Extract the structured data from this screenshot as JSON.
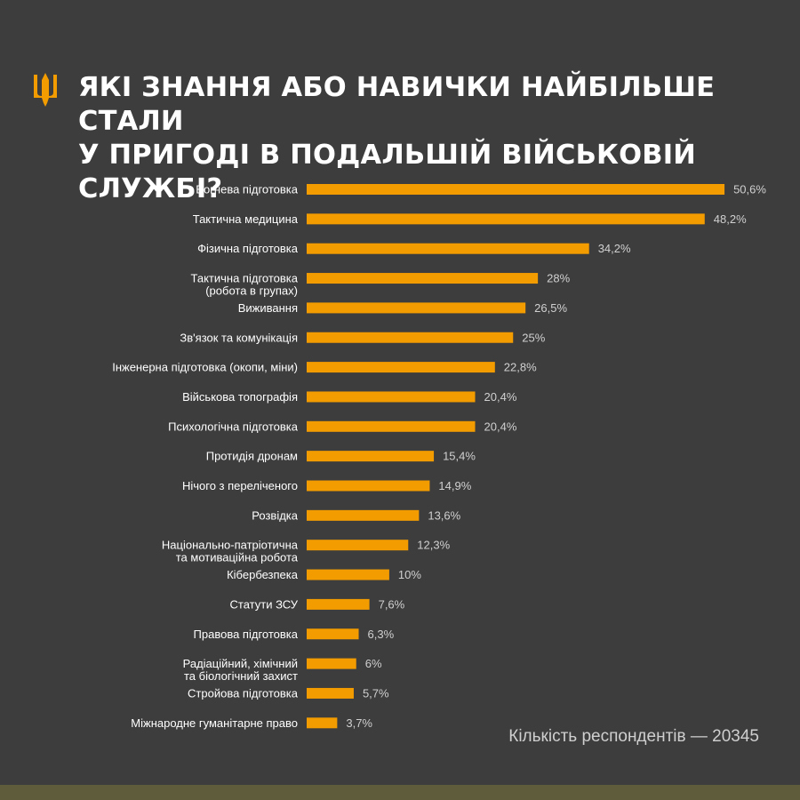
{
  "header": {
    "title_line1": "ЯКІ ЗНАННЯ АБО НАВИЧКИ НАЙБІЛЬШЕ СТАЛИ",
    "title_line2": "У ПРИГОДІ В ПОДАЛЬШІЙ ВІЙСЬКОВІЙ СЛУЖБІ?",
    "emblem_icon": "trident-icon"
  },
  "footnote": "Кількість респондентів — 20345",
  "colors": {
    "background": "#3d3d3d",
    "bar": "#f39c00",
    "strip": "#5f5c3c",
    "label": "#ffffff",
    "value": "#d0d0d0"
  },
  "chart_data": {
    "type": "bar",
    "orientation": "horizontal",
    "title": "ЯКІ ЗНАННЯ АБО НАВИЧКИ НАЙБІЛЬШЕ СТАЛИ У ПРИГОДІ В ПОДАЛЬШІЙ ВІЙСЬКОВІЙ СЛУЖБІ?",
    "unit": "%",
    "grid": false,
    "categories": [
      [
        "Вогнева підготовка"
      ],
      [
        "Тактична медицина"
      ],
      [
        "Фізична підготовка"
      ],
      [
        "Тактична підготовка",
        "(робота в групах)"
      ],
      [
        "Виживання"
      ],
      [
        "Зв'язок та комунікація"
      ],
      [
        "Інженерна підготовка (окопи, міни)"
      ],
      [
        "Військова топографія"
      ],
      [
        "Психологічна підготовка"
      ],
      [
        "Протидія дронам"
      ],
      [
        "Нічого з переліченого"
      ],
      [
        "Розвідка"
      ],
      [
        "Національно-патріотична",
        "та мотиваційна робота"
      ],
      [
        "Кібербезпека"
      ],
      [
        "Статути ЗСУ"
      ],
      [
        "Правова підготовка"
      ],
      [
        "Радіаційний, хімічний",
        "та біологічний захист"
      ],
      [
        "Стройова підготовка"
      ],
      [
        "Міжнародне гуманітарне право"
      ]
    ],
    "values": [
      50.6,
      48.2,
      34.2,
      28,
      26.5,
      25,
      22.8,
      20.4,
      20.4,
      15.4,
      14.9,
      13.6,
      12.3,
      10,
      7.6,
      6.3,
      6,
      5.7,
      3.7
    ],
    "value_labels": [
      "50,6%",
      "48,2%",
      "34,2%",
      "28%",
      "26,5%",
      "25%",
      "22,8%",
      "20,4%",
      "20,4%",
      "15,4%",
      "14,9%",
      "13,6%",
      "12,3%",
      "10%",
      "7,6%",
      "6,3%",
      "6%",
      "5,7%",
      "3,7%"
    ]
  }
}
